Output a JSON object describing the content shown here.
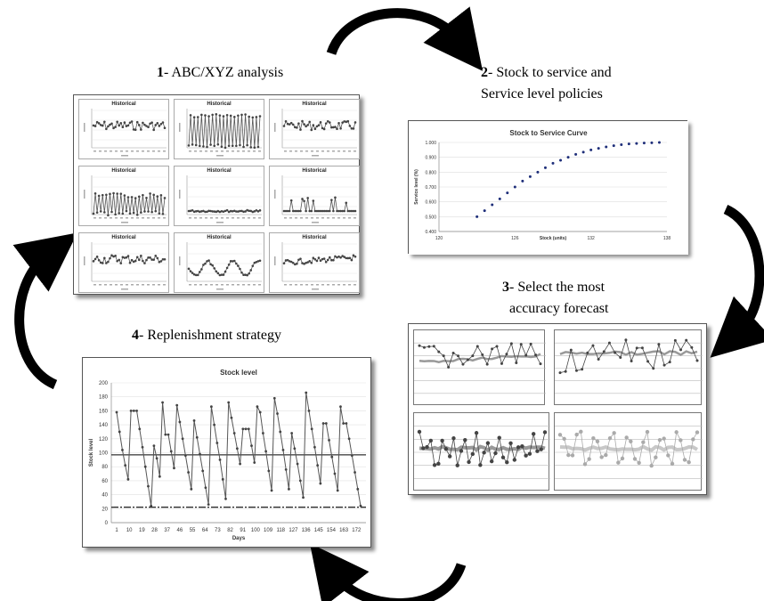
{
  "steps": {
    "s1": {
      "num": "1",
      "text": "- ABC/XYZ analysis"
    },
    "s2": {
      "num": "2",
      "line1": "- Stock to service  and",
      "line2": "Service level policies"
    },
    "s3": {
      "num": "3",
      "line1": "- Select the most",
      "line2": "accuracy forecast"
    },
    "s4": {
      "num": "4",
      "text": "- Replenishment strategy"
    }
  },
  "historical": {
    "title": "Historical"
  },
  "stock_to_service": {
    "title": "Stock to Service Curve",
    "xlabel": "Stock (units)",
    "ylabel": "Service level (%)",
    "yticks": [
      "1.000",
      "0.900",
      "0.800",
      "0.700",
      "0.600",
      "0.500",
      "0.400"
    ],
    "xticks": [
      "120",
      "126",
      "132",
      "138"
    ]
  },
  "stock_level": {
    "title": "Stock level",
    "xlabel": "Days",
    "ylabel": "Stock level",
    "yticks": [
      "200",
      "180",
      "160",
      "140",
      "120",
      "100",
      "80",
      "60",
      "40",
      "20",
      "0"
    ],
    "xticks": [
      "1",
      "10",
      "19",
      "28",
      "37",
      "46",
      "55",
      "64",
      "73",
      "82",
      "91",
      "100",
      "109",
      "118",
      "127",
      "136",
      "145",
      "154",
      "163",
      "172"
    ]
  },
  "chart_data": [
    {
      "type": "scatter",
      "title": "Stock to Service Curve",
      "xlabel": "Stock (units)",
      "ylabel": "Service level (%)",
      "xlim": [
        120,
        138
      ],
      "ylim": [
        0.4,
        1.0
      ],
      "x": [
        123.0,
        123.6,
        124.2,
        124.8,
        125.4,
        126.0,
        126.6,
        127.2,
        127.8,
        128.4,
        129.0,
        129.6,
        130.2,
        130.8,
        131.4,
        132.0,
        132.6,
        133.2,
        133.8,
        134.4,
        135.0,
        135.6,
        136.2,
        136.8,
        137.4
      ],
      "y": [
        0.5,
        0.54,
        0.58,
        0.62,
        0.66,
        0.7,
        0.74,
        0.77,
        0.8,
        0.83,
        0.86,
        0.88,
        0.9,
        0.92,
        0.935,
        0.95,
        0.96,
        0.97,
        0.978,
        0.985,
        0.99,
        0.993,
        0.996,
        0.998,
        1.0
      ]
    },
    {
      "type": "line",
      "title": "Stock level",
      "xlabel": "Days",
      "ylabel": "Stock level",
      "xlim": [
        1,
        175
      ],
      "ylim": [
        0,
        200
      ],
      "series": [
        {
          "values": [
            158,
            130,
            104,
            82,
            62,
            160,
            160,
            160,
            134,
            108,
            80,
            52,
            24,
            110,
            92,
            66,
            172,
            126,
            126,
            102,
            78,
            168,
            144,
            120,
            96,
            72,
            48,
            146,
            122,
            98,
            74,
            50,
            26,
            166,
            140,
            114,
            90,
            62,
            34,
            172,
            150,
            128,
            106,
            84,
            134,
            134,
            134,
            110,
            86,
            166,
            158,
            128,
            102,
            74,
            46,
            178,
            156,
            130,
            104,
            76,
            48,
            128,
            106,
            84,
            60,
            36,
            186,
            160,
            134,
            108,
            82,
            56,
            142,
            142,
            118,
            94,
            70,
            46,
            166,
            142,
            142,
            120,
            96,
            72,
            48,
            24
          ]
        },
        {
          "values": [
            97,
            97
          ]
        },
        {
          "values": [
            22,
            22
          ]
        }
      ]
    }
  ]
}
